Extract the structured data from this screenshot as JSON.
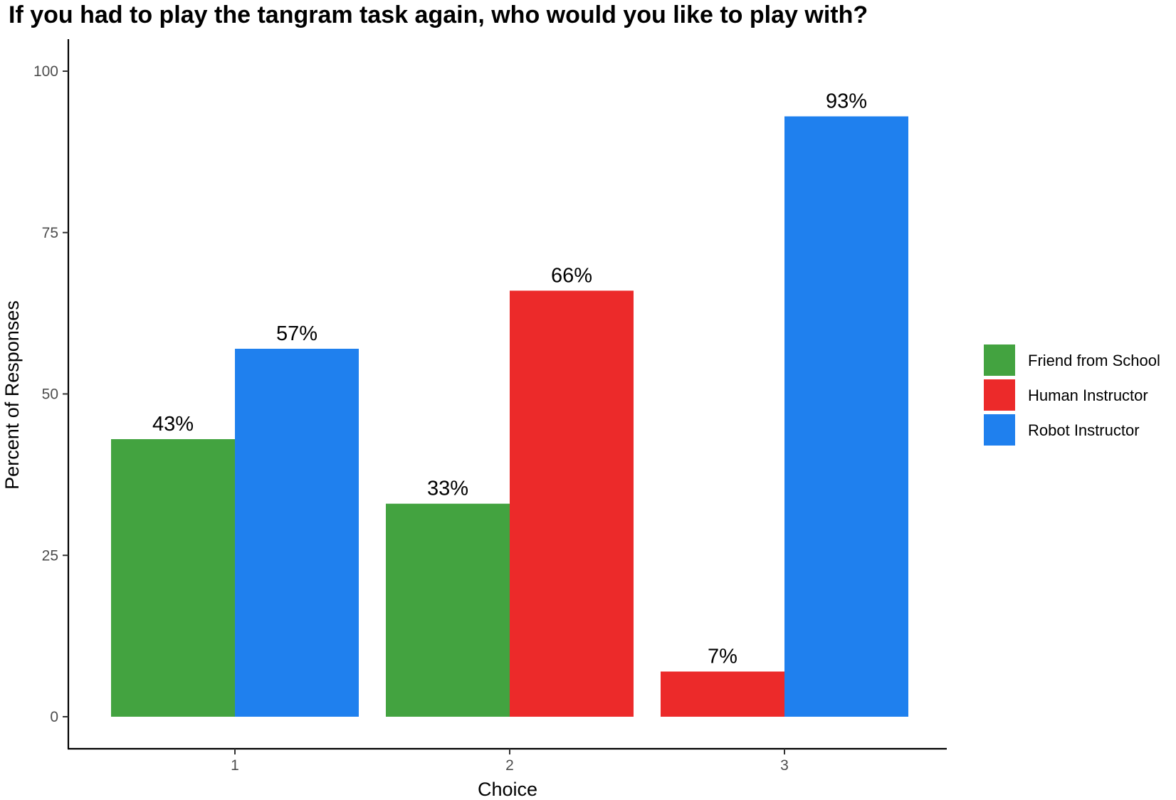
{
  "chart_data": {
    "type": "bar",
    "title": "If you had to play the tangram task again, who would you like to play with?",
    "xlabel": "Choice",
    "ylabel": "Percent of Responses",
    "categories": [
      "1",
      "2",
      "3"
    ],
    "ylim": [
      0,
      105
    ],
    "yticks": [
      0,
      25,
      50,
      75,
      100
    ],
    "grid": false,
    "legend_position": "right",
    "series": [
      {
        "name": "Friend from School",
        "color": "#43A340",
        "values": [
          43,
          33,
          null
        ],
        "labels": [
          "43%",
          "33%",
          ""
        ]
      },
      {
        "name": "Human Instructor",
        "color": "#EC2A2A",
        "values": [
          null,
          66,
          7
        ],
        "labels": [
          "",
          "66%",
          "7%"
        ]
      },
      {
        "name": "Robot Instructor",
        "color": "#1F80EE",
        "values": [
          57,
          null,
          93
        ],
        "labels": [
          "57%",
          "",
          "93%"
        ]
      }
    ]
  }
}
